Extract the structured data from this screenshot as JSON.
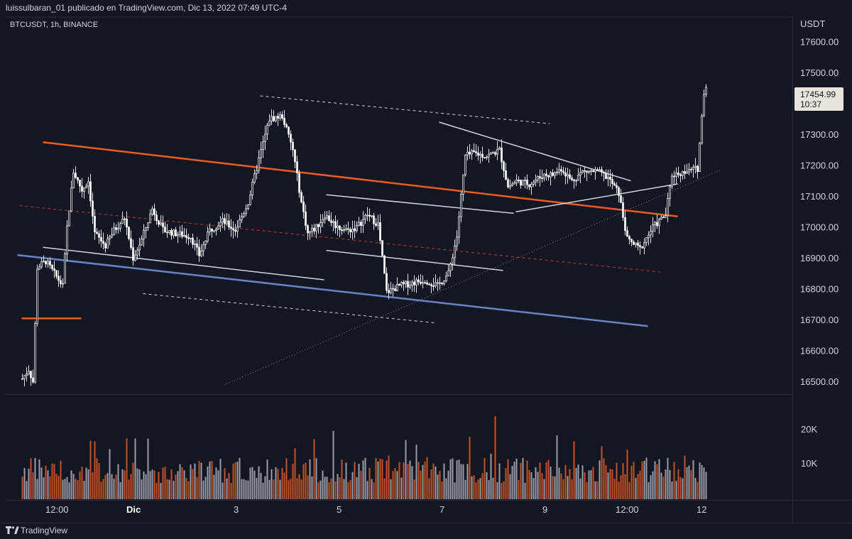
{
  "header": {
    "published_by": "luissulbaran_01 publicado en TradingView.com, Dic 13, 2022 07:49 UTC-4",
    "symbol": "BTCUSDT, 1h, BINANCE"
  },
  "price_axis": {
    "currency": "USDT",
    "ticks": [
      "17600.00",
      "17500.00",
      "17400.00",
      "17300.00",
      "17200.00",
      "17100.00",
      "17000.00",
      "16900.00",
      "16800.00",
      "16700.00",
      "16600.00",
      "16500.00"
    ]
  },
  "last_price": {
    "price": "17454.99",
    "countdown": "10:37"
  },
  "volume_axis": {
    "ticks": [
      "20K",
      "10K"
    ]
  },
  "time_axis": {
    "labels": [
      "12:00",
      "Dic",
      "3",
      "5",
      "7",
      "9",
      "12:00",
      "12"
    ]
  },
  "brand": {
    "name": "TradingView"
  },
  "colors": {
    "background": "#131722",
    "up": "#ffffff",
    "down": "#ffffff",
    "volume_up": "#b2b5be",
    "volume_down": "#e65a24",
    "orange_line": "#ee5a24",
    "blue_line": "#6b82c7",
    "white_line": "#d1d4dc",
    "red_dashed": "#c93838"
  },
  "chart_data": {
    "type": "candlestick",
    "symbol": "BTCUSDT",
    "interval": "1h",
    "exchange": "BINANCE",
    "ylim": [
      16460,
      17680
    ],
    "candle_path": [
      [
        "2022-11-30 00:00",
        16510
      ],
      [
        "2022-11-30 03:00",
        16540
      ],
      [
        "2022-11-30 05:00",
        16500
      ],
      [
        "2022-11-30 07:00",
        16870
      ],
      [
        "2022-11-30 11:00",
        16890
      ],
      [
        "2022-11-30 15:00",
        16850
      ],
      [
        "2022-11-30 19:00",
        16810
      ],
      [
        "2022-11-30 21:00",
        17000
      ],
      [
        "2022-12-01 00:00",
        17180
      ],
      [
        "2022-12-01 04:00",
        17120
      ],
      [
        "2022-12-01 07:00",
        17150
      ],
      [
        "2022-12-01 10:00",
        16980
      ],
      [
        "2022-12-01 15:00",
        16940
      ],
      [
        "2022-12-01 19:00",
        16990
      ],
      [
        "2022-12-02 00:00",
        17030
      ],
      [
        "2022-12-02 04:00",
        16900
      ],
      [
        "2022-12-02 08:00",
        16960
      ],
      [
        "2022-12-02 13:00",
        17060
      ],
      [
        "2022-12-02 18:00",
        16990
      ],
      [
        "2022-12-03 00:00",
        16980
      ],
      [
        "2022-12-03 07:00",
        16970
      ],
      [
        "2022-12-03 11:00",
        16910
      ],
      [
        "2022-12-03 16:00",
        16990
      ],
      [
        "2022-12-03 22:00",
        17020
      ],
      [
        "2022-12-04 04:00",
        16990
      ],
      [
        "2022-12-04 10:00",
        17080
      ],
      [
        "2022-12-04 15:00",
        17220
      ],
      [
        "2022-12-04 20:00",
        17350
      ],
      [
        "2022-12-05 02:00",
        17360
      ],
      [
        "2022-12-05 07:00",
        17250
      ],
      [
        "2022-12-05 11:00",
        17080
      ],
      [
        "2022-12-05 14:00",
        16980
      ],
      [
        "2022-12-05 18:00",
        17000
      ],
      [
        "2022-12-05 22:00",
        17040
      ],
      [
        "2022-12-06 04:00",
        17000
      ],
      [
        "2022-12-06 09:00",
        16990
      ],
      [
        "2022-12-06 13:00",
        17000
      ],
      [
        "2022-12-06 18:00",
        17040
      ],
      [
        "2022-12-06 23:00",
        17010
      ],
      [
        "2022-12-07 03:00",
        16790
      ],
      [
        "2022-12-07 09:00",
        16810
      ],
      [
        "2022-12-07 15:00",
        16820
      ],
      [
        "2022-12-07 21:00",
        16830
      ],
      [
        "2022-12-08 03:00",
        16810
      ],
      [
        "2022-12-08 08:00",
        16850
      ],
      [
        "2022-12-08 12:00",
        16970
      ],
      [
        "2022-12-08 16:00",
        17230
      ],
      [
        "2022-12-08 20:00",
        17240
      ],
      [
        "2022-12-09 02:00",
        17230
      ],
      [
        "2022-12-09 08:00",
        17250
      ],
      [
        "2022-12-09 12:00",
        17130
      ],
      [
        "2022-12-09 16:00",
        17150
      ],
      [
        "2022-12-09 22:00",
        17140
      ],
      [
        "2022-12-10 05:00",
        17170
      ],
      [
        "2022-12-10 09:00",
        17170
      ],
      [
        "2022-12-10 13:00",
        17190
      ],
      [
        "2022-12-10 18:00",
        17150
      ],
      [
        "2022-12-10 23:00",
        17180
      ],
      [
        "2022-12-11 06:00",
        17180
      ],
      [
        "2022-12-11 11:00",
        17160
      ],
      [
        "2022-12-11 16:00",
        17110
      ],
      [
        "2022-12-11 20:00",
        16960
      ],
      [
        "2022-12-12 02:00",
        16930
      ],
      [
        "2022-12-12 08:00",
        17000
      ],
      [
        "2022-12-12 14:00",
        17040
      ],
      [
        "2022-12-12 17:00",
        17170
      ],
      [
        "2022-12-13 00:00",
        17180
      ],
      [
        "2022-12-13 05:00",
        17190
      ],
      [
        "2022-12-13 08:00",
        17440
      ],
      [
        "2022-12-13 09:00",
        17455
      ]
    ],
    "volume_ylim": [
      0,
      28000
    ],
    "drawings": [
      {
        "kind": "line",
        "style": "solid",
        "color": "#ee5a24",
        "from": [
          "2022-11-30 00:00",
          16705
        ],
        "to": [
          "2022-12-01 04:00",
          16705
        ]
      },
      {
        "kind": "line",
        "style": "solid",
        "color": "#ee5a24",
        "from": [
          "2022-11-30 10:00",
          17275
        ],
        "to": [
          "2022-12-12 20:00",
          17035
        ]
      },
      {
        "kind": "line",
        "style": "solid",
        "color": "#6b82c7",
        "from": [
          "2022-11-29 22:00",
          16910
        ],
        "to": [
          "2022-12-12 06:00",
          16680
        ]
      },
      {
        "kind": "line",
        "style": "dashed",
        "color": "#c93838",
        "from": [
          "2022-11-29 23:00",
          17070
        ],
        "to": [
          "2022-12-12 12:00",
          16855
        ]
      },
      {
        "kind": "line",
        "style": "solid",
        "color": "#d1d4dc",
        "from": [
          "2022-11-30 10:00",
          16935
        ],
        "to": [
          "2022-12-05 22:00",
          16830
        ]
      },
      {
        "kind": "line",
        "style": "dashed",
        "color": "#d1d4dc",
        "from": [
          "2022-12-02 09:00",
          16785
        ],
        "to": [
          "2022-12-08 03:00",
          16690
        ]
      },
      {
        "kind": "line",
        "style": "dashed",
        "color": "#d1d4dc",
        "from": [
          "2022-12-04 16:00",
          17425
        ],
        "to": [
          "2022-12-10 08:00",
          17335
        ]
      },
      {
        "kind": "line",
        "style": "solid",
        "color": "#d1d4dc",
        "from": [
          "2022-12-05 23:00",
          17105
        ],
        "to": [
          "2022-12-09 15:00",
          17045
        ]
      },
      {
        "kind": "line",
        "style": "solid",
        "color": "#d1d4dc",
        "from": [
          "2022-12-05 23:00",
          16925
        ],
        "to": [
          "2022-12-09 10:00",
          16860
        ]
      },
      {
        "kind": "line",
        "style": "solid",
        "color": "#d1d4dc",
        "from": [
          "2022-12-08 04:00",
          17340
        ],
        "to": [
          "2022-12-11 22:00",
          17150
        ]
      },
      {
        "kind": "line",
        "style": "solid",
        "color": "#d1d4dc",
        "from": [
          "2022-12-09 16:00",
          17050
        ],
        "to": [
          "2022-12-12 20:00",
          17140
        ]
      },
      {
        "kind": "line",
        "style": "dotted",
        "color": "#8a8e98",
        "from": [
          "2022-12-03 23:00",
          16490
        ],
        "to": [
          "2022-12-13 16:00",
          17185
        ]
      }
    ]
  }
}
